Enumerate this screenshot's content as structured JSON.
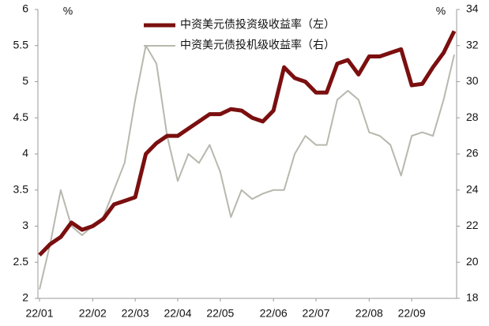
{
  "chart_data": {
    "type": "line",
    "ylabel": "%",
    "y2label": "%",
    "categories": [
      "22/01",
      null,
      null,
      null,
      null,
      "22/02",
      null,
      null,
      null,
      "22/03",
      null,
      null,
      null,
      "22/04",
      null,
      null,
      null,
      "22/05",
      null,
      null,
      null,
      null,
      "22/06",
      null,
      null,
      null,
      "22/07",
      null,
      null,
      null,
      null,
      "22/08",
      null,
      null,
      null,
      "22/09",
      null,
      null,
      null,
      null
    ],
    "series": [
      {
        "name": "中资美元债投资级收益率（左）",
        "color": "#7b0f0f",
        "axis": "y",
        "values": [
          2.6,
          2.75,
          2.85,
          3.05,
          2.95,
          3.0,
          3.1,
          3.3,
          3.35,
          3.4,
          4.0,
          4.15,
          4.25,
          4.25,
          4.35,
          4.45,
          4.55,
          4.55,
          4.62,
          4.6,
          4.5,
          4.45,
          4.6,
          5.2,
          5.05,
          5.0,
          4.85,
          4.85,
          5.25,
          5.3,
          5.1,
          5.35,
          5.35,
          5.4,
          5.45,
          4.95,
          4.97,
          5.2,
          5.4,
          5.7
        ]
      },
      {
        "name": "中资美元债投机级收益率（右）",
        "color": "#b7b8ae",
        "axis": "y2",
        "values": [
          18.5,
          21,
          24,
          22,
          21.5,
          22,
          22.5,
          24,
          25.5,
          29,
          32,
          31,
          27,
          24.5,
          26,
          25.5,
          26.5,
          25,
          22.5,
          24,
          23.5,
          23.8,
          24,
          24,
          26,
          27,
          26.5,
          26.5,
          29,
          29.5,
          29,
          27.2,
          27,
          26.5,
          24.8,
          27,
          27.2,
          27,
          29,
          31.5
        ]
      }
    ],
    "ylim": [
      2,
      6
    ],
    "yticks": [
      2,
      2.5,
      3,
      3.5,
      4,
      4.5,
      5,
      5.5,
      6
    ],
    "y2lim": [
      18,
      34
    ],
    "y2ticks": [
      18,
      20,
      22,
      24,
      26,
      28,
      30,
      32,
      34
    ]
  }
}
